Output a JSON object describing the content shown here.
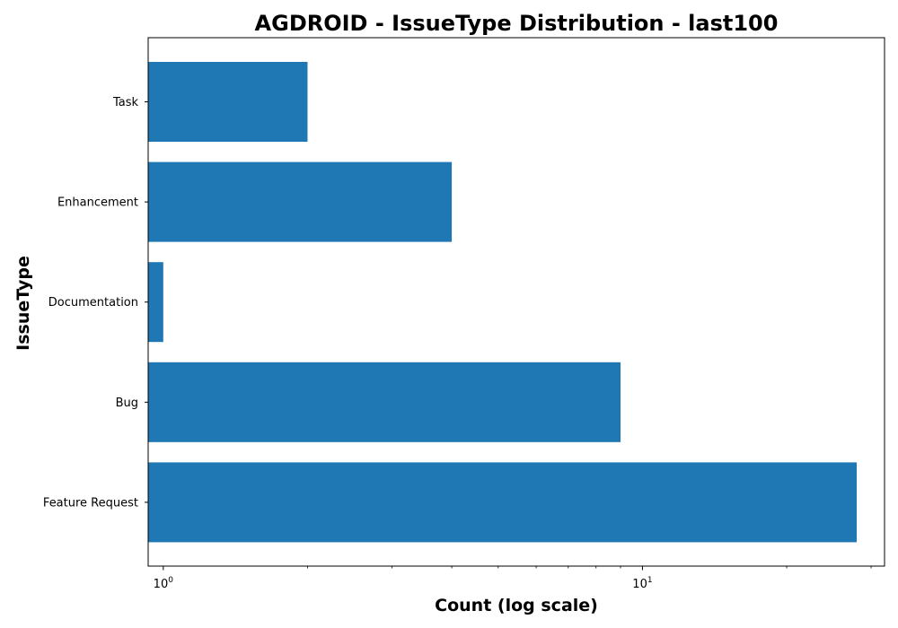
{
  "chart_data": {
    "type": "bar",
    "orientation": "horizontal",
    "title": "AGDROID - IssueType Distribution - last100",
    "xlabel": "Count (log scale)",
    "ylabel": "IssueType",
    "xscale": "log",
    "xlim": [
      0.93,
      32
    ],
    "x_ticks": [
      {
        "value": 1,
        "base": "10",
        "exponent": "0"
      },
      {
        "value": 10,
        "base": "10",
        "exponent": "1"
      }
    ],
    "categories": [
      "Feature Request",
      "Bug",
      "Documentation",
      "Enhancement",
      "Task"
    ],
    "values": [
      28,
      9,
      1,
      4,
      2
    ],
    "bar_color": "#1f77b4",
    "grid": false,
    "legend": false
  }
}
